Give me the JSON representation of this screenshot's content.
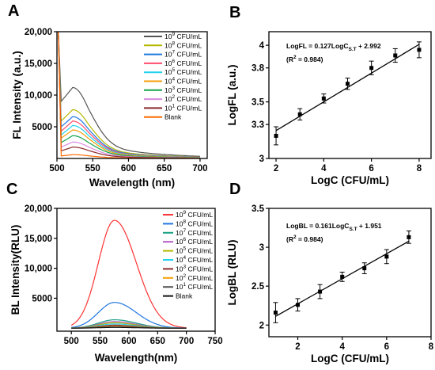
{
  "chart_data": [
    {
      "panel": "A",
      "type": "line",
      "xlabel": "Wavelength (nm)",
      "ylabel": "FL Intensity (a.u.)",
      "xlim": [
        500,
        710
      ],
      "ylim": [
        0,
        20000
      ],
      "xticks": [
        500,
        550,
        600,
        650,
        700
      ],
      "yticks": [
        {
          "v": 5000,
          "label": "5000"
        },
        {
          "v": 10000,
          "label": "10,000"
        },
        {
          "v": 15000,
          "label": "15,000"
        },
        {
          "v": 20000,
          "label": "20,000"
        }
      ],
      "grid": false,
      "legend_position": "top-right",
      "series": [
        {
          "name_base": "10",
          "exp": "9",
          "unit": " CFU/mL",
          "color": "#555555",
          "peak": 11200,
          "valley": 9000
        },
        {
          "name_base": "10",
          "exp": "8",
          "unit": " CFU/mL",
          "color": "#b5b800",
          "peak": 7700,
          "valley": 5900
        },
        {
          "name_base": "10",
          "exp": "7",
          "unit": " CFU/mL",
          "color": "#1f77e0",
          "peak": 6600,
          "valley": 5000
        },
        {
          "name_base": "10",
          "exp": "6",
          "unit": " CFU/mL",
          "color": "#ff4d6d",
          "peak": 5900,
          "valley": 4300
        },
        {
          "name_base": "10",
          "exp": "5",
          "unit": " CFU/mL",
          "color": "#22d3ee",
          "peak": 5200,
          "valley": 3700
        },
        {
          "name_base": "10",
          "exp": "4",
          "unit": " CFU/mL",
          "color": "#f59e0b",
          "peak": 4500,
          "valley": 3200
        },
        {
          "name_base": "10",
          "exp": "3",
          "unit": " CFU/mL",
          "color": "#16a34a",
          "peak": 3600,
          "valley": 2500
        },
        {
          "name_base": "10",
          "exp": "2",
          "unit": " CFU/mL",
          "color": "#d98ae0",
          "peak": 2600,
          "valley": 1800
        },
        {
          "name_base": "10",
          "exp": "1",
          "unit": " CFU/mL",
          "color": "#8b2a2a",
          "peak": 1800,
          "valley": 1200
        },
        {
          "name_base": "Blank",
          "exp": "",
          "unit": "",
          "color": "#ff6a00",
          "peak": 600,
          "valley": 400
        }
      ]
    },
    {
      "panel": "B",
      "type": "scatter",
      "xlabel": "LogC (CFU/mL)",
      "ylabel": "LogFL (a.u.)",
      "xlim": [
        1.7,
        8.5
      ],
      "ylim": [
        3.0,
        4.12
      ],
      "xticks": [
        2,
        4,
        6,
        8
      ],
      "yticks": [
        3.0,
        3.3,
        3.5,
        3.8,
        4.0
      ],
      "equation_main": "LogFL = 0.127LogC",
      "equation_sub": "S.T",
      "equation_tail": " + 2.992",
      "r2": "(R",
      "r2_exp": "2",
      "r2_tail": " = 0.984)",
      "points": [
        {
          "x": 2,
          "y": 3.2,
          "err": 0.08
        },
        {
          "x": 3,
          "y": 3.39,
          "err": 0.05
        },
        {
          "x": 4,
          "y": 3.53,
          "err": 0.04
        },
        {
          "x": 5,
          "y": 3.66,
          "err": 0.05
        },
        {
          "x": 6,
          "y": 3.8,
          "err": 0.06
        },
        {
          "x": 7,
          "y": 3.91,
          "err": 0.06
        },
        {
          "x": 8,
          "y": 3.96,
          "err": 0.07
        }
      ],
      "fit": {
        "slope": 0.127,
        "intercept": 2.992,
        "x_from": 2,
        "x_to": 8
      }
    },
    {
      "panel": "C",
      "type": "line",
      "xlabel": "Wavelength(nm)",
      "ylabel": "BL Intensity(RLU)",
      "xlim": [
        475,
        750
      ],
      "ylim": [
        -500,
        20000
      ],
      "xticks": [
        500,
        550,
        600,
        650,
        700,
        750
      ],
      "yticks": [
        {
          "v": 5000,
          "label": "5000"
        },
        {
          "v": 10000,
          "label": "10,000"
        },
        {
          "v": 15000,
          "label": "15,000"
        },
        {
          "v": 20000,
          "label": "20,000"
        }
      ],
      "grid": false,
      "legend_position": "top-right",
      "series": [
        {
          "name_base": "10",
          "exp": "9",
          "unit": " CFU/mL",
          "color": "#ff3333",
          "peak": 18000
        },
        {
          "name_base": "10",
          "exp": "8",
          "unit": " CFU/mL",
          "color": "#1f77e0",
          "peak": 4300
        },
        {
          "name_base": "10",
          "exp": "7",
          "unit": " CFU/mL",
          "color": "#16a085",
          "peak": 1400
        },
        {
          "name_base": "10",
          "exp": "6",
          "unit": " CFU/mL",
          "color": "#b05cc0",
          "peak": 1100
        },
        {
          "name_base": "10",
          "exp": "5",
          "unit": " CFU/mL",
          "color": "#b5b800",
          "peak": 900
        },
        {
          "name_base": "10",
          "exp": "4",
          "unit": " CFU/mL",
          "color": "#22d3ee",
          "peak": 700
        },
        {
          "name_base": "10",
          "exp": "3",
          "unit": " CFU/mL",
          "color": "#8b2a2a",
          "peak": 500
        },
        {
          "name_base": "10",
          "exp": "2",
          "unit": " CFU/mL",
          "color": "#f59e0b",
          "peak": 350
        },
        {
          "name_base": "10",
          "exp": "1",
          "unit": " CFU/mL",
          "color": "#555555",
          "peak": 250
        },
        {
          "name_base": "Blank",
          "exp": "",
          "unit": "",
          "color": "#111111",
          "peak": 120
        }
      ]
    },
    {
      "panel": "D",
      "type": "scatter",
      "xlabel": "LogC (CFU/mL)",
      "ylabel": "LogBL (RLU)",
      "xlim": [
        0.7,
        8.0
      ],
      "ylim": [
        1.85,
        3.5
      ],
      "xticks": [
        2,
        4,
        6,
        8
      ],
      "yticks": [
        2.0,
        2.5,
        3.0,
        3.5
      ],
      "equation_main": "LogBL = 0.161LogC",
      "equation_sub": "S.T",
      "equation_tail": " + 1.951",
      "r2": "(R",
      "r2_exp": "2",
      "r2_tail": " = 0.984)",
      "points": [
        {
          "x": 1,
          "y": 2.16,
          "err": 0.13
        },
        {
          "x": 2,
          "y": 2.26,
          "err": 0.08
        },
        {
          "x": 3,
          "y": 2.43,
          "err": 0.09
        },
        {
          "x": 4,
          "y": 2.62,
          "err": 0.06
        },
        {
          "x": 5,
          "y": 2.73,
          "err": 0.07
        },
        {
          "x": 6,
          "y": 2.88,
          "err": 0.09
        },
        {
          "x": 7,
          "y": 3.13,
          "err": 0.08
        }
      ],
      "fit": {
        "slope": 0.161,
        "intercept": 1.951,
        "x_from": 1,
        "x_to": 7
      }
    }
  ]
}
